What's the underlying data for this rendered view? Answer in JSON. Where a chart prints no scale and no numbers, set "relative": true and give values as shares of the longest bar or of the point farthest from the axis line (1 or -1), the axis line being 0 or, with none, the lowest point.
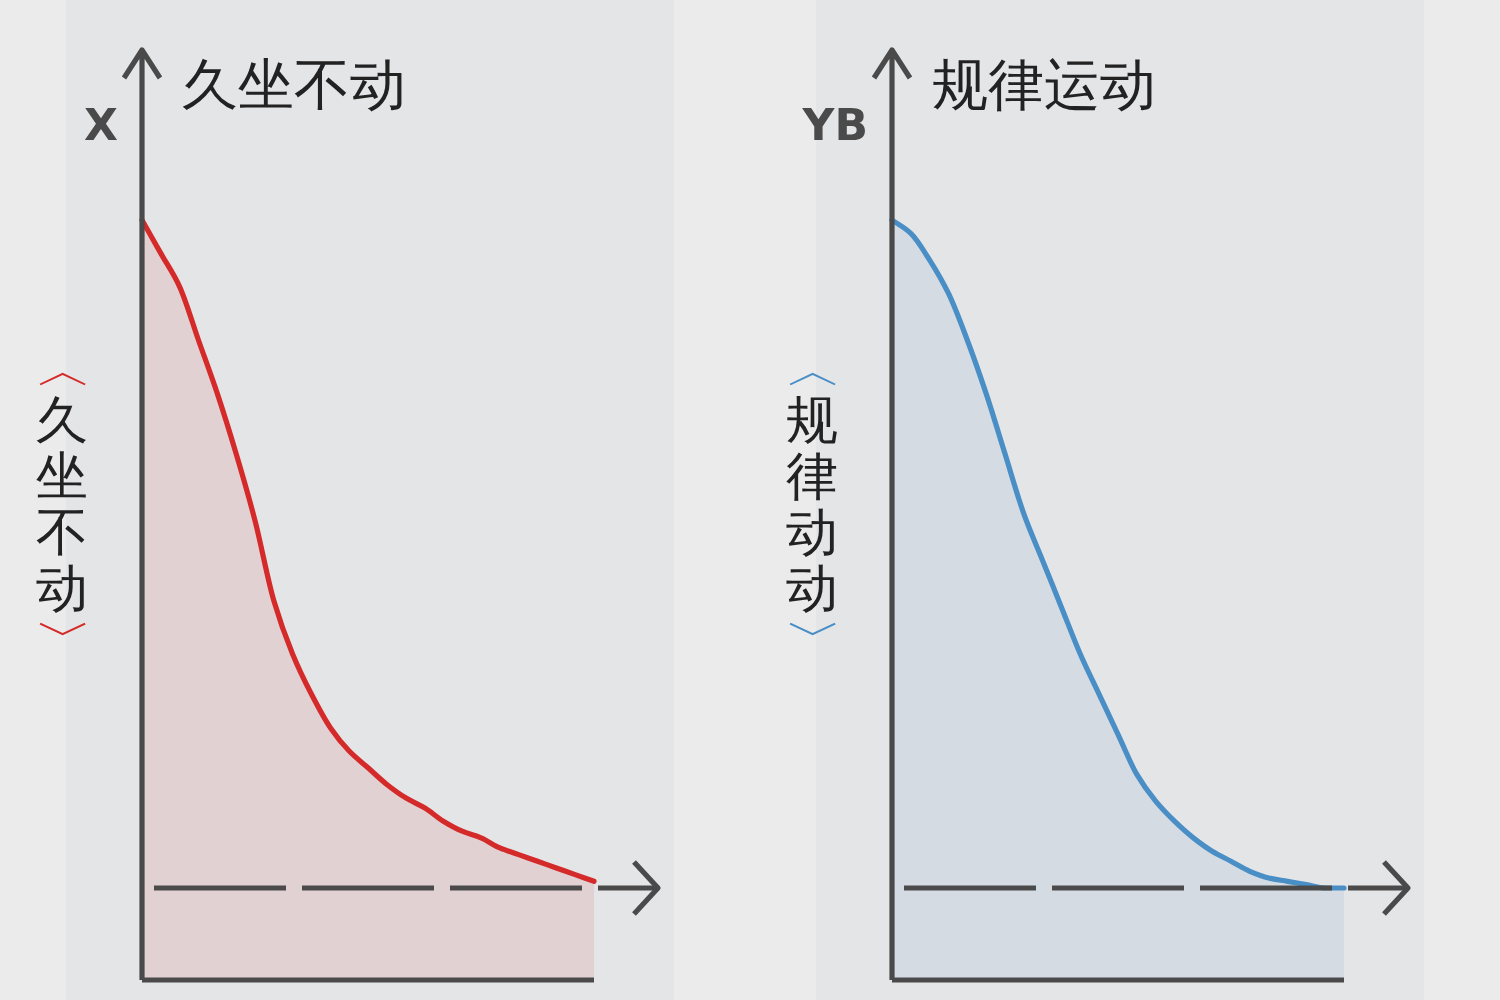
{
  "chart_data": [
    {
      "type": "area",
      "title": "久坐不动",
      "ylabel": "〈久坐不动〉",
      "annotations": [
        "X"
      ],
      "relative": true,
      "categories": [
        null,
        null,
        null,
        null,
        null,
        null,
        null,
        null,
        null,
        null,
        null,
        null,
        null,
        null,
        null,
        null,
        null,
        null,
        null,
        null,
        null,
        null,
        null,
        null,
        null
      ],
      "series": [
        {
          "color": "#d42a2a",
          "values": [
            1,
            0.95,
            0.9,
            0.82,
            0.74,
            0.65,
            0.55,
            0.43,
            0.35,
            0.29,
            0.24,
            0.205,
            0.18,
            0.155,
            0.135,
            0.12,
            0.1,
            0.085,
            0.075,
            0.06,
            0.05,
            0.04,
            0.03,
            0.02,
            0.01
          ]
        }
      ]
    },
    {
      "type": "area",
      "title": "规律运动",
      "ylabel": "〈规律动动〉",
      "annotations": [
        "YB"
      ],
      "relative": true,
      "categories": [
        null,
        null,
        null,
        null,
        null,
        null,
        null,
        null,
        null,
        null,
        null,
        null,
        null,
        null,
        null,
        null,
        null,
        null,
        null,
        null,
        null,
        null,
        null,
        null,
        null
      ],
      "series": [
        {
          "color": "#4a8ec6",
          "values": [
            1,
            0.98,
            0.94,
            0.89,
            0.82,
            0.74,
            0.65,
            0.56,
            0.49,
            0.42,
            0.35,
            0.29,
            0.23,
            0.17,
            0.13,
            0.1,
            0.075,
            0.055,
            0.04,
            0.025,
            0.015,
            0.01,
            0.005,
            0,
            0
          ]
        }
      ]
    }
  ]
}
